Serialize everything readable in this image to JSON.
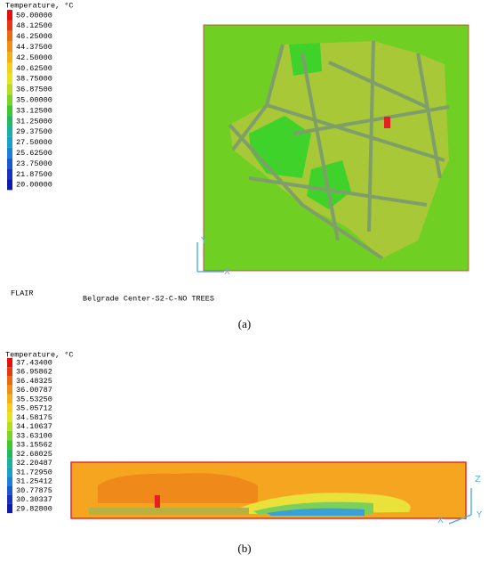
{
  "panel_a": {
    "legend_title": "Temperature, °C",
    "levels": [
      "50.00000",
      "48.12500",
      "46.25000",
      "44.37500",
      "42.50000",
      "40.62500",
      "38.75000",
      "36.87500",
      "35.00000",
      "33.12500",
      "31.25000",
      "29.37500",
      "27.50000",
      "25.62500",
      "23.75000",
      "21.87500",
      "20.00000"
    ],
    "axis_labels": [
      "Y",
      "X"
    ],
    "software": "FLAIR",
    "case_name": "Belgrade Center-S2-C-NO TREES",
    "caption": "(a)"
  },
  "panel_b": {
    "legend_title": "Temperature, °C",
    "levels": [
      "37.43400",
      "36.95862",
      "36.48325",
      "36.00787",
      "35.53250",
      "35.05712",
      "34.58175",
      "34.10637",
      "33.63100",
      "33.15562",
      "32.68025",
      "32.20487",
      "31.72950",
      "31.25412",
      "30.77875",
      "30.30337",
      "29.82800"
    ],
    "axis_labels": [
      "Z",
      "Y",
      "X"
    ],
    "caption": "(b)"
  }
}
